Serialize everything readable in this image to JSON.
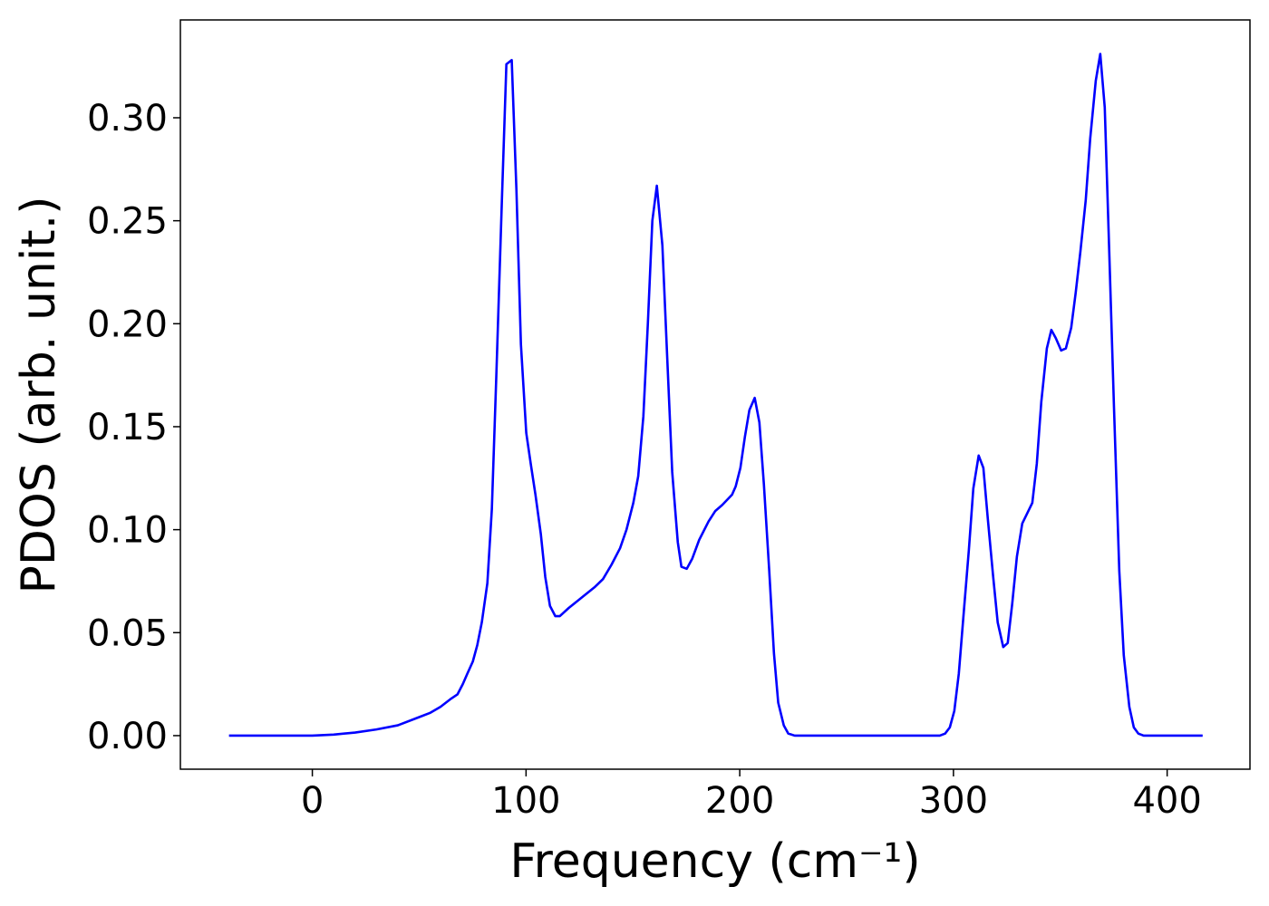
{
  "chart_data": {
    "type": "line",
    "xlabel": "Frequency (cm⁻¹)",
    "ylabel": "PDOS (arb. unit.)",
    "xlim": [
      -61.75,
      438.75
    ],
    "ylim": [
      -0.0163,
      0.3475
    ],
    "xticks": [
      0,
      100,
      200,
      300,
      400
    ],
    "yticks": [
      {
        "value": 0,
        "label": "0.00"
      },
      {
        "value": 0.05,
        "label": "0.05"
      },
      {
        "value": 0.1,
        "label": "0.10"
      },
      {
        "value": 0.15,
        "label": "0.15"
      },
      {
        "value": 0.2,
        "label": "0.20"
      },
      {
        "value": 0.25,
        "label": "0.25"
      },
      {
        "value": 0.3,
        "label": "0.30"
      }
    ],
    "grid": false,
    "x": [
      -39,
      0,
      10,
      20,
      30,
      40,
      50,
      55,
      60,
      65,
      67.9,
      70.4,
      72.5,
      75.1,
      77.2,
      79.3,
      81.9,
      84,
      86.1,
      88.7,
      90.8,
      93.3,
      95.5,
      97.6,
      100.1,
      102.2,
      104.4,
      106.9,
      109,
      111.2,
      113.7,
      115.8,
      120,
      126,
      132,
      136,
      140,
      144,
      147,
      150.2,
      152.5,
      154.9,
      157,
      159.1,
      161.2,
      163.8,
      166,
      168.4,
      171,
      172.7,
      175.2,
      177.8,
      181,
      185.4,
      188.5,
      191.8,
      196.4,
      198.1,
      200.3,
      202.4,
      204.5,
      207,
      209.2,
      211.3,
      213.8,
      216,
      218,
      220.6,
      222.7,
      225.7,
      293.6,
      296.1,
      298.3,
      300.4,
      302.5,
      304.6,
      307.2,
      309.3,
      311.8,
      314,
      316.1,
      318.6,
      320.7,
      323.3,
      325.4,
      327.5,
      329.7,
      332.2,
      336.9,
      339,
      341.1,
      343.7,
      345.8,
      347.9,
      350.4,
      352.6,
      355.1,
      357.2,
      359.4,
      361.9,
      364,
      366.6,
      368.7,
      370.8,
      372.9,
      375.1,
      377.6,
      379.7,
      382.3,
      384.4,
      386.5,
      389,
      416.6
    ],
    "series": [
      {
        "name": "PDOS",
        "color": "#0000ff",
        "values": [
          0,
          0,
          0.0005,
          0.0015,
          0.003,
          0.005,
          0.009,
          0.011,
          0.014,
          0.018,
          0.02,
          0.025,
          0.03,
          0.036,
          0.044,
          0.055,
          0.074,
          0.11,
          0.175,
          0.26,
          0.326,
          0.328,
          0.265,
          0.19,
          0.147,
          0.132,
          0.117,
          0.098,
          0.077,
          0.063,
          0.058,
          0.058,
          0.062,
          0.067,
          0.072,
          0.076,
          0.083,
          0.091,
          0.1,
          0.113,
          0.126,
          0.155,
          0.2,
          0.25,
          0.267,
          0.238,
          0.185,
          0.128,
          0.094,
          0.082,
          0.081,
          0.086,
          0.095,
          0.104,
          0.109,
          0.112,
          0.117,
          0.121,
          0.13,
          0.145,
          0.158,
          0.164,
          0.152,
          0.122,
          0.08,
          0.04,
          0.016,
          0.005,
          0.001,
          0,
          0,
          0.001,
          0.004,
          0.012,
          0.03,
          0.057,
          0.09,
          0.12,
          0.136,
          0.13,
          0.105,
          0.077,
          0.055,
          0.043,
          0.045,
          0.064,
          0.087,
          0.103,
          0.113,
          0.132,
          0.162,
          0.188,
          0.197,
          0.193,
          0.187,
          0.188,
          0.198,
          0.215,
          0.235,
          0.26,
          0.29,
          0.318,
          0.331,
          0.305,
          0.235,
          0.16,
          0.08,
          0.039,
          0.014,
          0.004,
          0.001,
          0,
          0
        ]
      }
    ]
  }
}
